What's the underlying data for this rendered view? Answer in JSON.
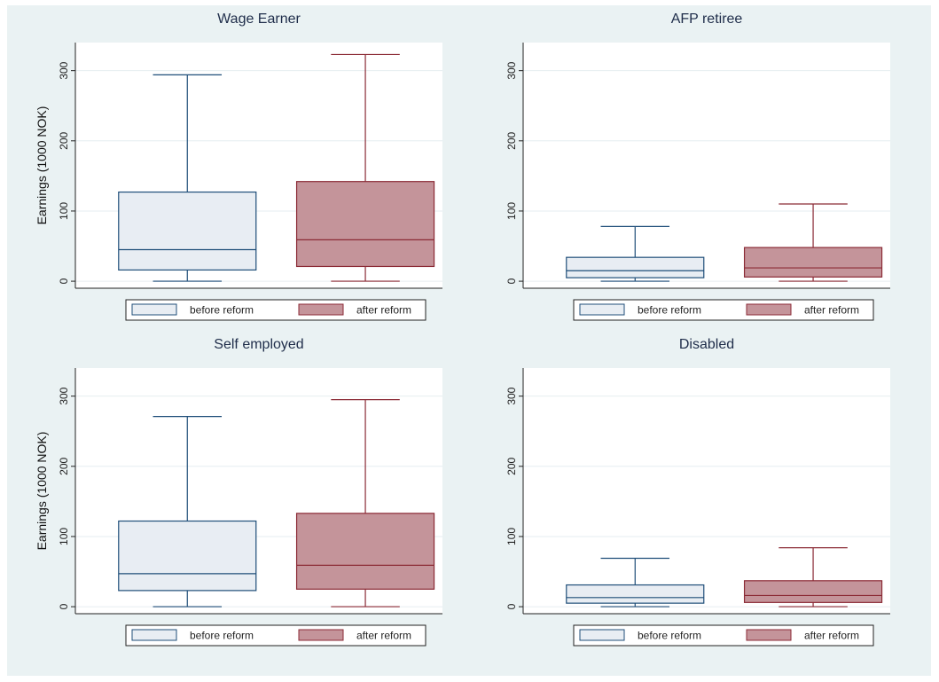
{
  "chart_data": [
    {
      "type": "box",
      "title": "Wage Earner",
      "ylabel": "Earnings (1000 NOK)",
      "ylim": [
        -10,
        340
      ],
      "yticks": [
        0,
        100,
        200,
        300
      ],
      "legend": [
        "before reform",
        "after reform"
      ],
      "series": [
        {
          "name": "before reform",
          "whisker_low": 0,
          "q1": 16,
          "median": 45,
          "q3": 127,
          "whisker_high": 294,
          "fill": "#e8edf3",
          "stroke": "#1f4e79"
        },
        {
          "name": "after reform",
          "whisker_low": 0,
          "q1": 21,
          "median": 59,
          "q3": 142,
          "whisker_high": 323,
          "fill": "#c4949a",
          "stroke": "#8b2a35"
        }
      ]
    },
    {
      "type": "box",
      "title": "AFP retiree",
      "ylabel": "",
      "ylim": [
        -10,
        340
      ],
      "yticks": [
        0,
        100,
        200,
        300
      ],
      "legend": [
        "before reform",
        "after reform"
      ],
      "series": [
        {
          "name": "before reform",
          "whisker_low": 0,
          "q1": 5,
          "median": 15,
          "q3": 34,
          "whisker_high": 78,
          "fill": "#e8edf3",
          "stroke": "#1f4e79"
        },
        {
          "name": "after reform",
          "whisker_low": 0,
          "q1": 6,
          "median": 19,
          "q3": 48,
          "whisker_high": 110,
          "fill": "#c4949a",
          "stroke": "#8b2a35"
        }
      ]
    },
    {
      "type": "box",
      "title": "Self employed",
      "ylabel": "Earnings (1000 NOK)",
      "ylim": [
        -10,
        340
      ],
      "yticks": [
        0,
        100,
        200,
        300
      ],
      "legend": [
        "before reform",
        "after reform"
      ],
      "series": [
        {
          "name": "before reform",
          "whisker_low": 0,
          "q1": 23,
          "median": 47,
          "q3": 122,
          "whisker_high": 271,
          "fill": "#e8edf3",
          "stroke": "#1f4e79"
        },
        {
          "name": "after reform",
          "whisker_low": 0,
          "q1": 25,
          "median": 59,
          "q3": 133,
          "whisker_high": 295,
          "fill": "#c4949a",
          "stroke": "#8b2a35"
        }
      ]
    },
    {
      "type": "box",
      "title": "Disabled",
      "ylabel": "",
      "ylim": [
        -10,
        340
      ],
      "yticks": [
        0,
        100,
        200,
        300
      ],
      "legend": [
        "before reform",
        "after reform"
      ],
      "series": [
        {
          "name": "before reform",
          "whisker_low": 0,
          "q1": 5,
          "median": 13,
          "q3": 31,
          "whisker_high": 69,
          "fill": "#e8edf3",
          "stroke": "#1f4e79"
        },
        {
          "name": "after reform",
          "whisker_low": 0,
          "q1": 6,
          "median": 16,
          "q3": 37,
          "whisker_high": 84,
          "fill": "#c4949a",
          "stroke": "#8b2a35"
        }
      ]
    }
  ],
  "colors": {
    "background": "#eaf2f3",
    "plot": "#ffffff",
    "grid": "#e6eef0",
    "title": "#1f2d4a"
  }
}
